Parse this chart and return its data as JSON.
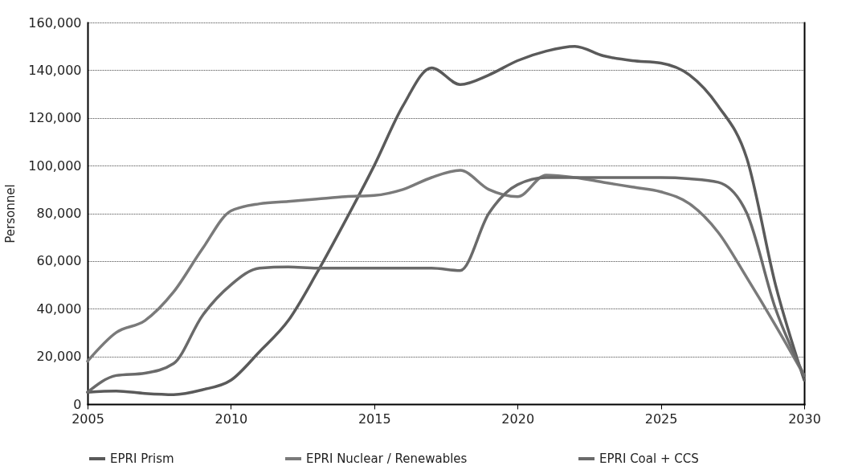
{
  "chart_data": {
    "type": "line",
    "ylabel": "Personnel",
    "x": [
      2005,
      2006,
      2007,
      2008,
      2009,
      2010,
      2011,
      2012,
      2013,
      2014,
      2015,
      2016,
      2017,
      2018,
      2019,
      2020,
      2021,
      2022,
      2023,
      2024,
      2025,
      2026,
      2027,
      2028,
      2029,
      2030
    ],
    "series": [
      {
        "name": "EPRI Prism",
        "color": "#5a5a5a",
        "values": [
          5000,
          5500,
          4500,
          4000,
          6000,
          10000,
          22000,
          35000,
          55000,
          77000,
          100000,
          125000,
          141000,
          134000,
          138000,
          144000,
          148000,
          150000,
          146000,
          144000,
          143000,
          138000,
          125000,
          103000,
          50000,
          10000
        ]
      },
      {
        "name": "EPRI Nuclear / Renewables",
        "color": "#7a7a7a",
        "values": [
          18000,
          30000,
          35000,
          47000,
          65000,
          81000,
          84000,
          85000,
          86000,
          87000,
          87500,
          90000,
          95000,
          98000,
          90000,
          87000,
          96000,
          95000,
          93000,
          91000,
          89000,
          84000,
          72000,
          53000,
          33000,
          12000
        ]
      },
      {
        "name": "EPRI Coal + CCS",
        "color": "#6a6a6a",
        "values": [
          5000,
          12000,
          13000,
          17000,
          37000,
          50000,
          57000,
          57500,
          57000,
          57000,
          57000,
          57000,
          57000,
          56000,
          80000,
          92000,
          95000,
          95000,
          95000,
          95000,
          95000,
          94500,
          93000,
          80000,
          40000,
          12000
        ]
      }
    ],
    "xlim": [
      2005,
      2030
    ],
    "xticks": [
      2005,
      2010,
      2015,
      2020,
      2025,
      2030
    ],
    "ylim": [
      0,
      160000
    ],
    "yticks": [
      0,
      {
        "value": 20000,
        "label": "20,000"
      },
      {
        "value": 40000,
        "label": "40,000"
      },
      {
        "value": 60000,
        "label": "60,000"
      },
      {
        "value": 80000,
        "label": "80,000"
      },
      {
        "value": 100000,
        "label": "100,000"
      },
      {
        "value": 120000,
        "label": "120,000"
      },
      {
        "value": 140000,
        "label": "140,000"
      },
      {
        "value": 160000,
        "label": "160,000"
      }
    ],
    "grid": "y",
    "legend": "bottom",
    "line_style": "solid",
    "marker": "none"
  }
}
